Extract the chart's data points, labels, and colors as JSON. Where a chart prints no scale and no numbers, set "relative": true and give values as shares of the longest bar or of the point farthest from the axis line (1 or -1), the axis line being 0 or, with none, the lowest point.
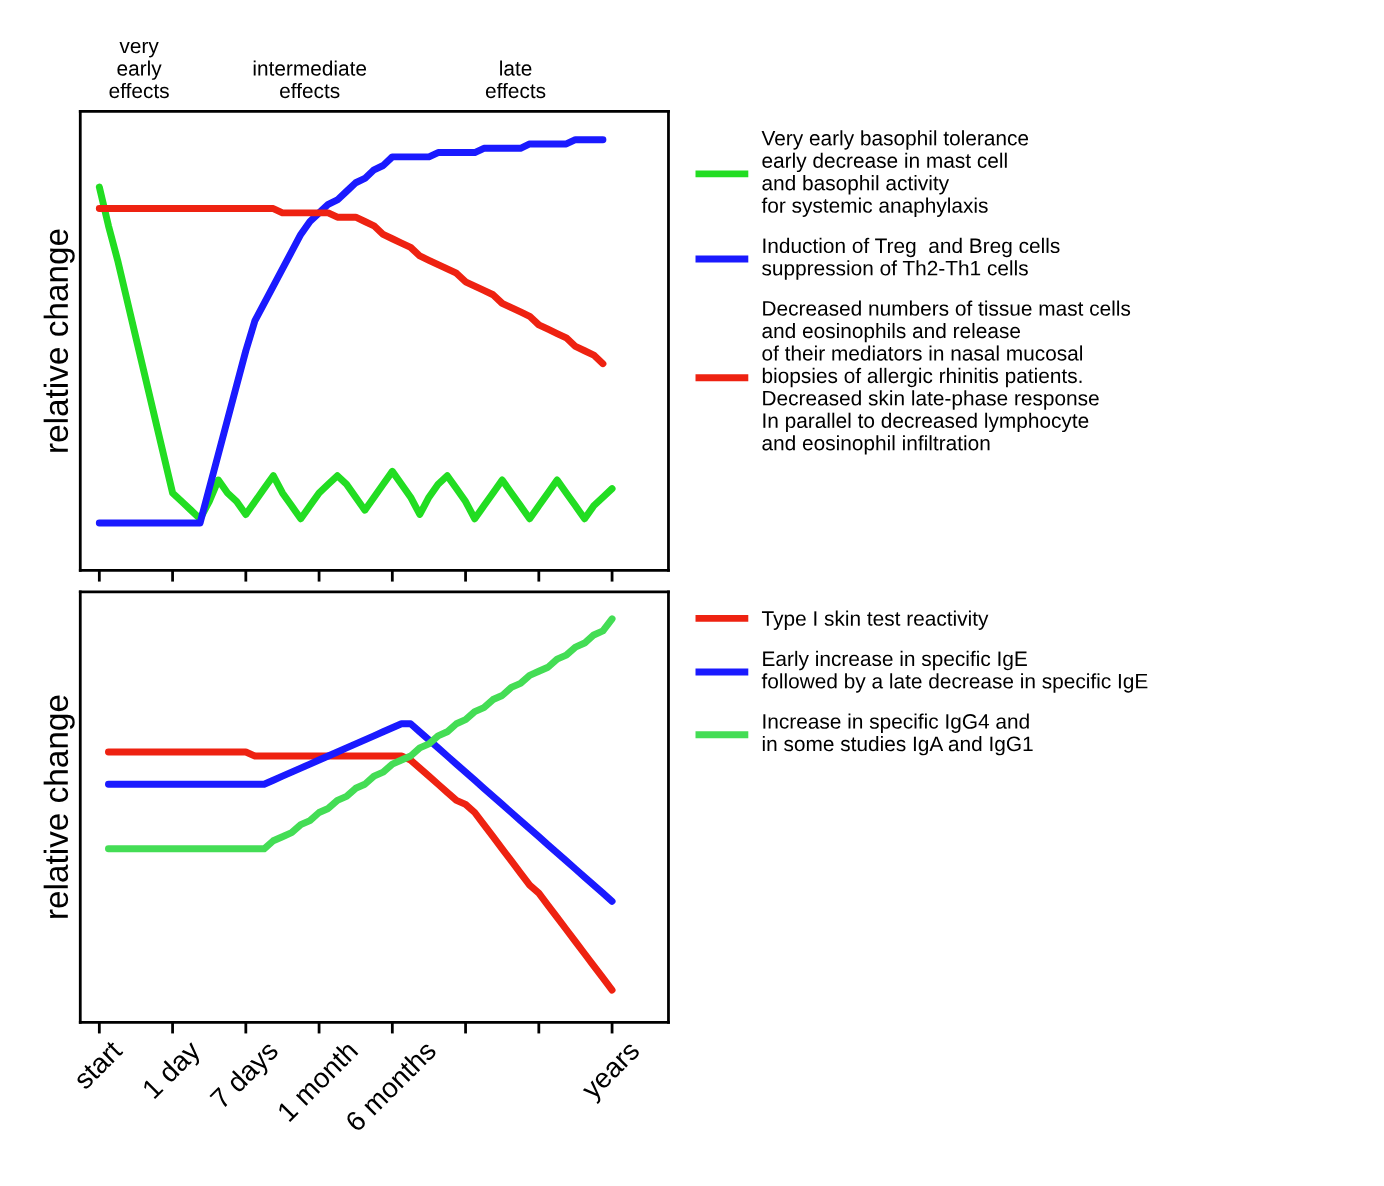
{
  "chart_data": [
    {
      "type": "line",
      "relative": true,
      "ylabel": "relative change",
      "legend": "right",
      "grid": false,
      "categories": [
        null,
        null,
        null,
        null,
        null,
        null,
        null,
        null,
        null,
        null,
        null,
        null,
        null,
        null,
        null,
        null,
        null,
        null,
        null,
        null,
        null,
        null,
        null,
        null,
        null,
        null,
        null,
        null,
        null,
        null,
        null,
        null,
        null,
        null,
        null,
        null,
        null,
        null,
        null,
        null,
        null,
        null,
        null,
        null,
        null,
        null,
        null,
        null,
        null,
        null,
        null,
        null,
        null,
        null,
        null,
        null,
        null
      ],
      "annotations": [
        "very\nearly\neffects",
        "intermediate\neffects",
        "late\neffects"
      ],
      "series": [
        {
          "name": "Very early basophil tolerance\nearly decrease in mast cell\nand basophil activity\nfor systemic anaphylaxis",
          "color": "#22dd22",
          "values": [
            0.89,
            0.8,
            0.72,
            0.63,
            0.54,
            0.45,
            0.36,
            0.27,
            0.18,
            0.16,
            0.14,
            0.12,
            0.16,
            0.21,
            0.18,
            0.16,
            0.13,
            0.16,
            0.19,
            0.22,
            0.18,
            0.15,
            0.12,
            0.15,
            0.18,
            0.2,
            0.22,
            0.2,
            0.17,
            0.14,
            0.17,
            0.2,
            0.23,
            0.2,
            0.17,
            0.13,
            0.17,
            0.2,
            0.22,
            0.19,
            0.16,
            0.12,
            0.15,
            0.18,
            0.21,
            0.18,
            0.15,
            0.12,
            0.15,
            0.18,
            0.21,
            0.18,
            0.15,
            0.12,
            0.15,
            0.17,
            0.19
          ]
        },
        {
          "name": "Induction of Treg  and Breg cells\nsuppression of Th2-Th1 cells",
          "color": "#1a1aff",
          "values": [
            0.11,
            0.11,
            0.11,
            0.11,
            0.11,
            0.11,
            0.11,
            0.11,
            0.11,
            0.11,
            0.11,
            0.11,
            0.19,
            0.27,
            0.35,
            0.43,
            0.51,
            0.58,
            0.62,
            0.66,
            0.7,
            0.74,
            0.78,
            0.81,
            0.83,
            0.85,
            0.86,
            0.88,
            0.9,
            0.91,
            0.93,
            0.94,
            0.96,
            0.96,
            0.96,
            0.96,
            0.96,
            0.97,
            0.97,
            0.97,
            0.97,
            0.97,
            0.98,
            0.98,
            0.98,
            0.98,
            0.98,
            0.99,
            0.99,
            0.99,
            0.99,
            0.99,
            1.0,
            1.0,
            1.0,
            1.0,
            null
          ]
        },
        {
          "name": "Decreased numbers of tissue mast cells\nand eosinophils and release\nof their mediators in nasal mucosal\nbiopsies of allergic rhinitis patients.\nDecreased skin late-phase response\nIn parallel to decreased lymphocyte\nand eosinophil infiltration",
          "color": "#ee2211",
          "values": [
            0.84,
            0.84,
            0.84,
            0.84,
            0.84,
            0.84,
            0.84,
            0.84,
            0.84,
            0.84,
            0.84,
            0.84,
            0.84,
            0.84,
            0.84,
            0.84,
            0.84,
            0.84,
            0.84,
            0.84,
            0.83,
            0.83,
            0.83,
            0.83,
            0.83,
            0.83,
            0.82,
            0.82,
            0.82,
            0.81,
            0.8,
            0.78,
            0.77,
            0.76,
            0.75,
            0.73,
            0.72,
            0.71,
            0.7,
            0.69,
            0.67,
            0.66,
            0.65,
            0.64,
            0.62,
            0.61,
            0.6,
            0.59,
            0.57,
            0.56,
            0.55,
            0.54,
            0.52,
            0.51,
            0.5,
            0.48,
            null
          ]
        }
      ]
    },
    {
      "type": "line",
      "relative": true,
      "ylabel": "relative change",
      "legend": "right",
      "grid": false,
      "categories": [
        "start",
        null,
        null,
        null,
        null,
        null,
        null,
        null,
        "1 day",
        null,
        null,
        null,
        null,
        null,
        null,
        null,
        "7 days",
        null,
        null,
        null,
        null,
        null,
        null,
        null,
        "1 month",
        null,
        null,
        null,
        null,
        null,
        null,
        null,
        "6 months",
        null,
        null,
        null,
        null,
        null,
        null,
        null,
        null,
        null,
        null,
        null,
        null,
        null,
        null,
        null,
        null,
        null,
        null,
        null,
        null,
        null,
        null,
        null,
        "years"
      ],
      "series": [
        {
          "name": "Type I skin test reactivity",
          "color": "#ee2211",
          "values": [
            null,
            0.67,
            0.67,
            0.67,
            0.67,
            0.67,
            0.67,
            0.67,
            0.67,
            0.67,
            0.67,
            0.67,
            0.67,
            0.67,
            0.67,
            0.67,
            0.67,
            0.66,
            0.66,
            0.66,
            0.66,
            0.66,
            0.66,
            0.66,
            0.66,
            0.66,
            0.66,
            0.66,
            0.66,
            0.66,
            0.66,
            0.66,
            0.66,
            0.66,
            0.65,
            0.63,
            0.61,
            0.59,
            0.57,
            0.55,
            0.54,
            0.52,
            0.49,
            0.46,
            0.43,
            0.4,
            0.37,
            0.34,
            0.32,
            0.29,
            0.26,
            0.23,
            0.2,
            0.17,
            0.14,
            0.11,
            0.08
          ]
        },
        {
          "name": "Early increase in specific IgE\nfollowed by a late decrease in specific IgE",
          "color": "#1a1aff",
          "values": [
            null,
            0.59,
            0.59,
            0.59,
            0.59,
            0.59,
            0.59,
            0.59,
            0.59,
            0.59,
            0.59,
            0.59,
            0.59,
            0.59,
            0.59,
            0.59,
            0.59,
            0.59,
            0.59,
            0.6,
            0.61,
            0.62,
            0.63,
            0.64,
            0.65,
            0.66,
            0.67,
            0.68,
            0.69,
            0.7,
            0.71,
            0.72,
            0.73,
            0.74,
            0.74,
            0.72,
            0.7,
            0.68,
            0.66,
            0.64,
            0.62,
            0.6,
            0.58,
            0.56,
            0.54,
            0.52,
            0.5,
            0.48,
            0.46,
            0.44,
            0.42,
            0.4,
            0.38,
            0.36,
            0.34,
            0.32,
            0.3
          ]
        },
        {
          "name": "Increase in specific IgG4 and\nin some studies IgA and IgG1",
          "color": "#44dd55",
          "values": [
            null,
            0.43,
            0.43,
            0.43,
            0.43,
            0.43,
            0.43,
            0.43,
            0.43,
            0.43,
            0.43,
            0.43,
            0.43,
            0.43,
            0.43,
            0.43,
            0.43,
            0.43,
            0.43,
            0.45,
            0.46,
            0.47,
            0.49,
            0.5,
            0.52,
            0.53,
            0.55,
            0.56,
            0.58,
            0.59,
            0.61,
            0.62,
            0.64,
            0.65,
            0.66,
            0.68,
            0.69,
            0.71,
            0.72,
            0.74,
            0.75,
            0.77,
            0.78,
            0.8,
            0.81,
            0.83,
            0.84,
            0.86,
            0.87,
            0.88,
            0.9,
            0.91,
            0.93,
            0.94,
            0.96,
            0.97,
            1.0
          ]
        }
      ]
    }
  ]
}
